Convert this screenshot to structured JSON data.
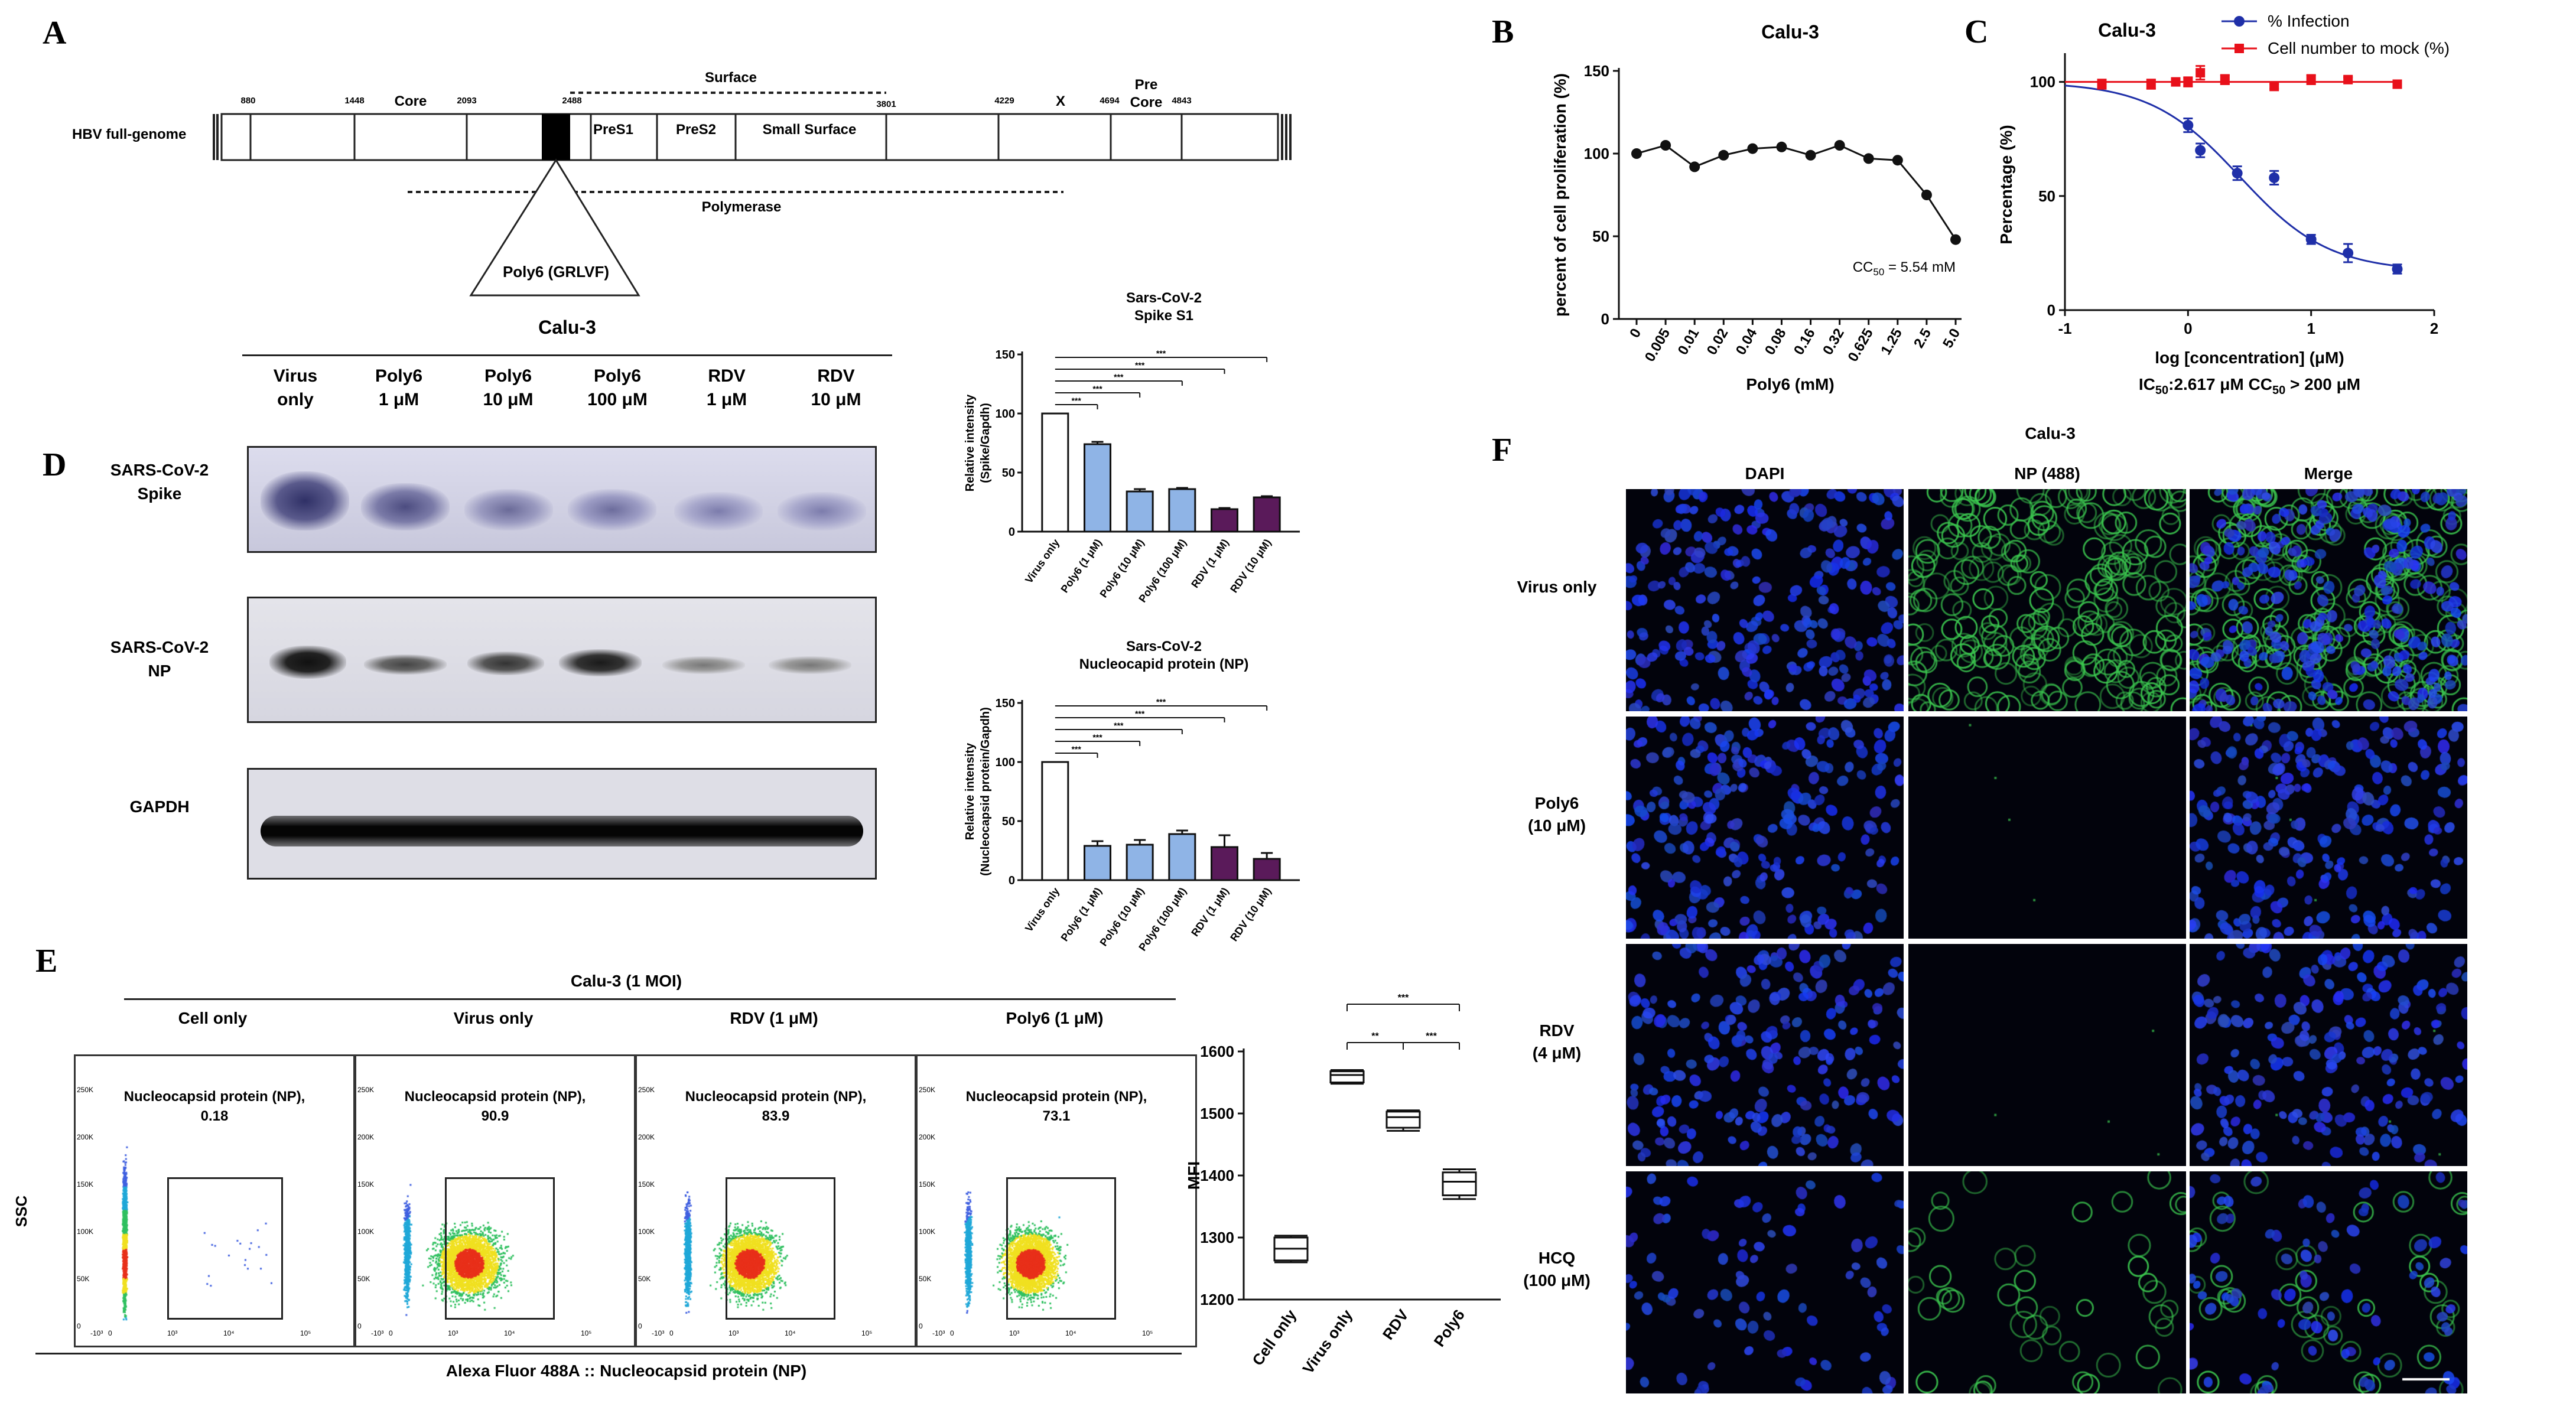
{
  "panel_letters": {
    "A": "A",
    "B": "B",
    "C": "C",
    "D": "D",
    "E": "E",
    "F": "F"
  },
  "panelA": {
    "genome_label": "HBV full-genome",
    "positions": [
      "880",
      "1448",
      "2093",
      "2488",
      "3801",
      "4229",
      "4694",
      "4843"
    ],
    "regions": {
      "core": "Core",
      "surface": "Surface",
      "pres1": "PreS1",
      "pres2": "PreS2",
      "small_surface": "Small Surface",
      "x": "X",
      "pre": "Pre",
      "pre_core": "Core",
      "polymerase": "Polymerase"
    },
    "peptide": "Poly6 (GRLVF)"
  },
  "panelD": {
    "cell_line": "Calu-3",
    "lanes": [
      [
        "Virus",
        "only"
      ],
      [
        "Poly6",
        "1 μM"
      ],
      [
        "Poly6",
        "10 μM"
      ],
      [
        "Poly6",
        "100 μM"
      ],
      [
        "RDV",
        "1 μM"
      ],
      [
        "RDV",
        "10 μM"
      ]
    ],
    "blots": [
      [
        "SARS-CoV-2",
        "Spike"
      ],
      [
        "SARS-CoV-2",
        "NP"
      ],
      [
        "GAPDH"
      ]
    ]
  },
  "panelE": {
    "title": "Calu-3 (1 MOI)",
    "groups": [
      "Cell only",
      "Virus only",
      "RDV (1 μM)",
      "Poly6 (1 μM)"
    ],
    "gate_label": "Nucleocapsid protein (NP),",
    "gate_values": [
      "0.18",
      "90.9",
      "83.9",
      "73.1"
    ],
    "y_axis": "SSC",
    "x_axis": "Alexa Fluor 488A :: Nucleocapsid protein (NP)",
    "y_ticks": [
      "250K",
      "200K",
      "150K",
      "100K",
      "50K",
      "0"
    ],
    "x_ticks": [
      "-10³",
      "0",
      "10³",
      "10⁴",
      "10⁵"
    ]
  },
  "panelF": {
    "cell_line": "Calu-3",
    "columns": [
      "DAPI",
      "NP (488)",
      "Merge"
    ],
    "rows": [
      [
        "Virus only"
      ],
      [
        "Poly6",
        "(10 μM)"
      ],
      [
        "RDV",
        "(4 μM)"
      ],
      [
        "HCQ",
        "(100 μM)"
      ]
    ]
  },
  "chart_data": [
    {
      "id": "B",
      "type": "line",
      "title": "Calu-3",
      "xlabel": "Poly6 (mM)",
      "ylabel": "percent of cell proliferation (%)",
      "categories": [
        "0",
        "0.005",
        "0.01",
        "0.02",
        "0.04",
        "0.08",
        "0.16",
        "0.32",
        "0.625",
        "1.25",
        "2.5",
        "5.0"
      ],
      "values": [
        100,
        105,
        92,
        99,
        103,
        104,
        99,
        105,
        97,
        96,
        75,
        48
      ],
      "ylim": [
        0,
        150
      ],
      "yticks": [
        0,
        50,
        100,
        150
      ],
      "annotation_main": "CC",
      "annotation_sub": "50",
      "annotation_rest": " = 5.54 mM",
      "color": "#111111"
    },
    {
      "id": "C",
      "type": "scatter",
      "title": "Calu-3",
      "xlabel": "log [concentration] (μM)",
      "caption_parts": [
        "IC",
        "50",
        ":2.617 μM CC",
        "50",
        " > 200 μM"
      ],
      "ylabel": "Percentage (%)",
      "xlim": [
        -1,
        2
      ],
      "xticks": [
        -1,
        0,
        1,
        2
      ],
      "ylim": [
        0,
        110
      ],
      "yticks": [
        0,
        50,
        100
      ],
      "series": [
        {
          "name": "% Infection",
          "color": "#1f2fa8",
          "x": [
            0,
            0.1,
            0.4,
            0.7,
            1.0,
            1.3,
            1.7
          ],
          "y": [
            81,
            70,
            60,
            58,
            31,
            25,
            18
          ],
          "err": [
            3,
            3,
            3,
            3,
            2,
            4,
            2
          ]
        },
        {
          "name": "Cell number to mock (%)",
          "color": "#e8101a",
          "x": [
            -0.7,
            -0.3,
            -0.1,
            0,
            0.1,
            0.3,
            0.7,
            1.0,
            1.3,
            1.7
          ],
          "y": [
            99,
            99,
            100,
            100,
            104,
            101,
            98,
            101,
            101,
            99
          ],
          "err": [
            2,
            2,
            1,
            2,
            3,
            2,
            1,
            2,
            1,
            1
          ]
        }
      ],
      "fit": {
        "top": 100,
        "bottom": 17,
        "log_ic50": 0.42,
        "hill": 1.2
      }
    },
    {
      "id": "D1",
      "type": "bar",
      "title": [
        "Sars-CoV-2",
        "Spike S1"
      ],
      "ylabel": [
        "Relative intensity",
        "(Spike/Gapdh)"
      ],
      "categories": [
        "Virus only",
        "Poly6 (1 μM)",
        "Poly6 (10 μM)",
        "Poly6 (100 μM)",
        "RDV (1 μM)",
        "RDV (10 μM)"
      ],
      "values": [
        100,
        74,
        34,
        36,
        19,
        29
      ],
      "err": [
        0,
        2,
        2,
        1,
        1,
        1
      ],
      "colors": [
        "#ffffff",
        "#8fb4e6",
        "#8fb4e6",
        "#8fb4e6",
        "#5a1a5a",
        "#5a1a5a"
      ],
      "ylim": [
        0,
        150
      ],
      "yticks": [
        0,
        50,
        100,
        150
      ],
      "sig": "***"
    },
    {
      "id": "D2",
      "type": "bar",
      "title": [
        "Sars-CoV-2",
        "Nucleocapid protein (NP)"
      ],
      "ylabel": [
        "Relative intensity",
        "(Nucleocapsid protein/Gapdh)"
      ],
      "categories": [
        "Virus only",
        "Poly6 (1 μM)",
        "Poly6 (10 μM)",
        "Poly6 (100 μM)",
        "RDV (1 μM)",
        "RDV (10 μM)"
      ],
      "values": [
        100,
        29,
        30,
        39,
        28,
        18
      ],
      "err": [
        0,
        4,
        4,
        3,
        10,
        5
      ],
      "colors": [
        "#ffffff",
        "#8fb4e6",
        "#8fb4e6",
        "#8fb4e6",
        "#5a1a5a",
        "#5a1a5a"
      ],
      "ylim": [
        0,
        150
      ],
      "yticks": [
        0,
        50,
        100,
        150
      ],
      "sig": "***"
    },
    {
      "id": "E_box",
      "type": "box",
      "ylabel": "MFI",
      "categories": [
        "Cell only",
        "Virus only",
        "RDV",
        "Poly6"
      ],
      "boxes": [
        {
          "min": 1260,
          "q1": 1263,
          "median": 1282,
          "q3": 1300,
          "max": 1303
        },
        {
          "min": 1548,
          "q1": 1550,
          "median": 1562,
          "q3": 1568,
          "max": 1570
        },
        {
          "min": 1472,
          "q1": 1477,
          "median": 1494,
          "q3": 1503,
          "max": 1505
        },
        {
          "min": 1362,
          "q1": 1368,
          "median": 1390,
          "q3": 1405,
          "max": 1410
        }
      ],
      "ylim": [
        1200,
        1600
      ],
      "yticks": [
        1200,
        1300,
        1400,
        1500,
        1600
      ],
      "sig": [
        {
          "from": 1,
          "to": 3,
          "label": "***"
        },
        {
          "from": 1,
          "to": 2,
          "label": "**"
        },
        {
          "from": 2,
          "to": 3,
          "label": "***"
        }
      ]
    }
  ]
}
